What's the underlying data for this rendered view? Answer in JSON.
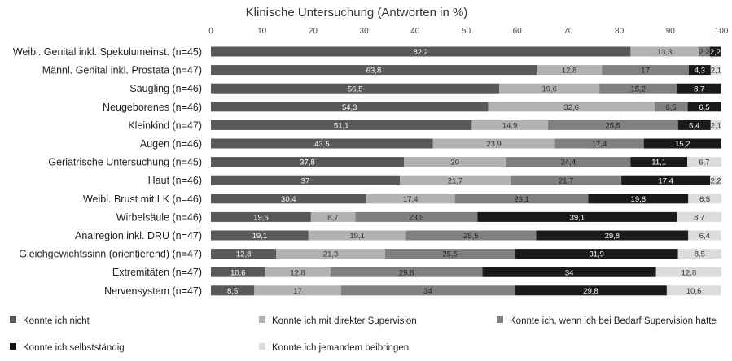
{
  "chart_data": {
    "type": "bar",
    "orientation": "horizontal",
    "stacked": true,
    "title": "Klinische Untersuchung (Antworten in %)",
    "xlim": [
      0,
      100
    ],
    "x_ticks": [
      0,
      10,
      20,
      30,
      40,
      50,
      60,
      70,
      80,
      90,
      100
    ],
    "grid": false,
    "legend_position": "bottom",
    "categories": [
      "Weibl. Genital inkl. Spekulumeinst. (n=45)",
      "Männl. Genital inkl. Prostata (n=47)",
      "Säugling (n=46)",
      "Neugeborenes (n=46)",
      "Kleinkind (n=47)",
      "Augen (n=46)",
      "Geriatrische Untersuchung (n=45)",
      "Haut (n=46)",
      "Weibl. Brust mit LK (n=46)",
      "Wirbelsäule (n=46)",
      "Analregion inkl. DRU (n=47)",
      "Gleichgewichtssinn (orientierend) (n=47)",
      "Extremitäten (n=47)",
      "Nervensystem (n=47)"
    ],
    "series": [
      {
        "name": "Konnte ich nicht",
        "color": "#595959",
        "label_color": "#ffffff",
        "values": [
          82.2,
          63.8,
          56.5,
          54.3,
          51.1,
          43.5,
          37.8,
          37,
          30.4,
          19.6,
          19.1,
          12.8,
          10.6,
          8.5
        ],
        "labels": [
          "82,2",
          "63,8",
          "56,5",
          "54,3",
          "51,1",
          "43,5",
          "37,8",
          "37",
          "30,4",
          "19,6",
          "19,1",
          "12,8",
          "10,6",
          "8,5"
        ]
      },
      {
        "name": "Konnte ich mit direkter Supervision",
        "color": "#b2b2b2",
        "label_color": "#333333",
        "values": [
          13.3,
          12.8,
          19.6,
          32.6,
          14.9,
          23.9,
          20,
          21.7,
          17.4,
          8.7,
          19.1,
          21.3,
          12.8,
          17
        ],
        "labels": [
          "13,3",
          "12,8",
          "19,6",
          "32,6",
          "14,9",
          "23,9",
          "20",
          "21,7",
          "17,4",
          "8,7",
          "19,1",
          "21,3",
          "12,8",
          "17"
        ]
      },
      {
        "name": "Konnte ich, wenn ich bei Bedarf Supervision hatte",
        "color": "#808080",
        "label_color": "#222222",
        "values": [
          2.2,
          17,
          15.2,
          6.5,
          25.5,
          17.4,
          24.4,
          21.7,
          26.1,
          23.9,
          25.5,
          25.5,
          29.8,
          34
        ],
        "labels": [
          "2,2",
          "17",
          "15,2",
          "6,5",
          "25,5",
          "17,4",
          "24,4",
          "21,7",
          "26,1",
          "23,9",
          "25,5",
          "25,5",
          "29,8",
          "34"
        ]
      },
      {
        "name": "Konnte ich selbstständig",
        "color": "#1a1a1a",
        "label_color": "#ffffff",
        "values": [
          2.2,
          4.3,
          8.7,
          6.5,
          6.4,
          15.2,
          11.1,
          17.4,
          19.6,
          39.1,
          29.8,
          31.9,
          34,
          29.8
        ],
        "labels": [
          "2,2",
          "4,3",
          "8,7",
          "6,5",
          "6,4",
          "15,2",
          "11,1",
          "17,4",
          "19,6",
          "39,1",
          "29,8",
          "31,9",
          "34",
          "29,8"
        ]
      },
      {
        "name": "Konnte ich jemandem beibringen",
        "color": "#dcdcdc",
        "label_color": "#333333",
        "values": [
          0,
          2.1,
          0,
          0,
          2.1,
          0,
          6.7,
          2.2,
          6.5,
          8.7,
          6.4,
          8.5,
          12.8,
          10.6
        ],
        "labels": [
          "",
          "2,1",
          "",
          "",
          "2,1",
          "",
          "6,7",
          "2,2",
          "6,5",
          "8,7",
          "6,4",
          "8,5",
          "12,8",
          "10,6"
        ]
      }
    ]
  }
}
